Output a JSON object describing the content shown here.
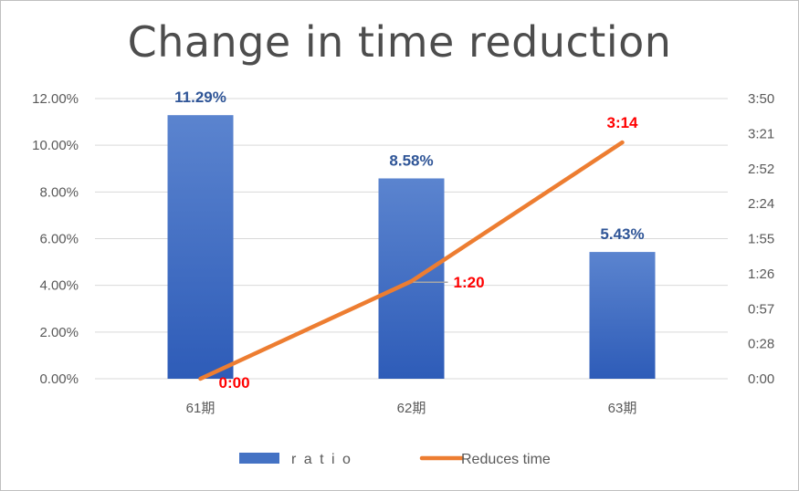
{
  "chart_data": {
    "type": "bar+line",
    "title": "Change in time reduction",
    "categories": [
      "61期",
      "62期",
      "63期"
    ],
    "left_axis": {
      "min": 0,
      "max": 0.12,
      "ticks": [
        "0.00%",
        "2.00%",
        "4.00%",
        "6.00%",
        "8.00%",
        "10.00%",
        "12.00%"
      ]
    },
    "right_axis": {
      "min_seconds": 0,
      "max_seconds": 230,
      "ticks": [
        "0:00",
        "0:28",
        "0:57",
        "1:26",
        "1:55",
        "2:24",
        "2:52",
        "3:21",
        "3:50"
      ]
    },
    "series": [
      {
        "name": "r a t i o",
        "kind": "bar",
        "axis": "left",
        "values": [
          0.1129,
          0.0858,
          0.0543
        ],
        "labels": [
          "11.29%",
          "8.58%",
          "5.43%"
        ],
        "color": "#4472c4"
      },
      {
        "name": "Reduces time",
        "kind": "line",
        "axis": "right",
        "values_seconds": [
          0,
          80,
          194
        ],
        "labels": [
          "0:00",
          "1:20",
          "3:14"
        ],
        "color": "#ed7d31",
        "label_color": "#ff0000"
      }
    ],
    "grid": true,
    "legend": "bottom"
  }
}
